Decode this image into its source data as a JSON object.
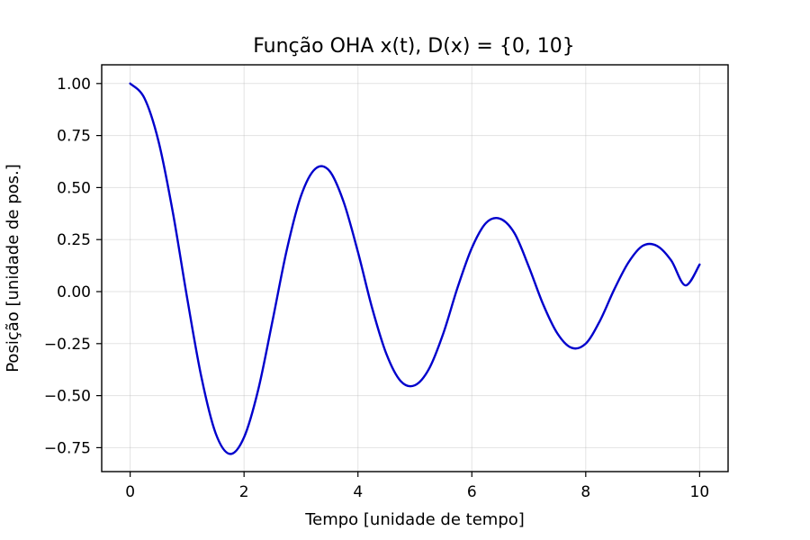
{
  "chart_data": {
    "type": "line",
    "title": "Função OHA x(t), D(x) = {0, 10}",
    "xlabel": "Tempo [unidade de tempo]",
    "ylabel": "Posição [unidade de pos.]",
    "xlim": [
      -0.5,
      10.5
    ],
    "ylim": [
      -0.865,
      1.09
    ],
    "xticks": [
      0,
      2,
      4,
      6,
      8,
      10
    ],
    "xtick_labels": [
      "0",
      "2",
      "4",
      "6",
      "8",
      "10"
    ],
    "yticks": [
      1.0,
      0.75,
      0.5,
      0.25,
      0.0,
      -0.25,
      -0.5,
      -0.75
    ],
    "ytick_labels": [
      "1.00",
      "0.75",
      "0.50",
      "0.25",
      "0.00",
      "−0.25",
      "−0.50",
      "−0.75"
    ],
    "grid": true,
    "series": [
      {
        "color": "#0000cc",
        "x": [
          0.0,
          0.25,
          0.5,
          0.75,
          1.0,
          1.25,
          1.5,
          1.75,
          2.0,
          2.25,
          2.5,
          2.75,
          3.0,
          3.25,
          3.5,
          3.75,
          4.0,
          4.25,
          4.5,
          4.75,
          5.0,
          5.25,
          5.5,
          5.75,
          6.0,
          6.25,
          6.5,
          6.75,
          7.0,
          7.25,
          7.5,
          7.75,
          8.0,
          8.25,
          8.5,
          8.75,
          9.0,
          9.25,
          9.5,
          9.75,
          10.0
        ],
        "y": [
          1.0,
          0.93,
          0.72,
          0.38,
          -0.03,
          -0.41,
          -0.68,
          -0.78,
          -0.7,
          -0.47,
          -0.14,
          0.2,
          0.46,
          0.59,
          0.58,
          0.43,
          0.19,
          -0.08,
          -0.3,
          -0.43,
          -0.45,
          -0.37,
          -0.2,
          0.02,
          0.21,
          0.33,
          0.35,
          0.28,
          0.12,
          -0.06,
          -0.2,
          -0.27,
          -0.25,
          -0.14,
          0.01,
          0.14,
          0.22,
          0.22,
          0.15,
          0.03,
          0.13
        ]
      }
    ]
  }
}
